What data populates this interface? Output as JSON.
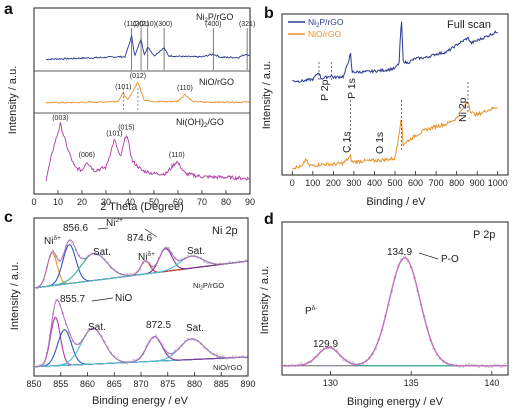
{
  "colors": {
    "navy": "#2a3a8f",
    "orange": "#e8922a",
    "magenta": "#b03aa6",
    "ni_green": "#2eae9a",
    "cyan": "#4bc0d2",
    "red": "#d5342c",
    "purple": "#7c3a9c",
    "gray_dots": "#9a9a9a",
    "axis": "#222222"
  },
  "chart_data": [
    {
      "panel": "a",
      "type": "line",
      "xlabel": "2 Theta (Degree)",
      "ylabel": "Intensity / a.u.",
      "xlim": [
        0,
        90
      ],
      "xticks": [
        0,
        10,
        20,
        30,
        40,
        50,
        60,
        70,
        80,
        90
      ],
      "series": [
        {
          "name": "Ni2P/rGO",
          "color": "navy",
          "x": [
            5,
            10,
            15,
            20,
            25,
            30,
            35,
            38,
            40.7,
            42,
            44.6,
            46,
            47.4,
            50,
            54.2,
            56,
            60,
            65,
            70,
            74.7,
            78,
            82,
            85,
            88.8,
            90
          ],
          "y": [
            0.1,
            0.12,
            0.13,
            0.15,
            0.16,
            0.18,
            0.2,
            0.2,
            1.0,
            0.22,
            0.9,
            0.25,
            0.6,
            0.24,
            0.55,
            0.24,
            0.22,
            0.2,
            0.2,
            0.3,
            0.18,
            0.18,
            0.17,
            0.32,
            0.18
          ],
          "annotations": [
            "(111)",
            "(201)",
            "(210)",
            "(300)",
            "(400)",
            "(321)"
          ],
          "annotation_x": [
            40.7,
            44.6,
            47.4,
            54.2,
            74.7,
            88.8
          ]
        },
        {
          "name": "NiO/rGO",
          "color": "orange",
          "x": [
            5,
            10,
            15,
            20,
            25,
            30,
            35,
            37.2,
            39,
            43.3,
            46,
            50,
            55,
            60,
            62.9,
            66,
            70,
            75,
            80,
            85,
            90
          ],
          "y": [
            0.1,
            0.1,
            0.1,
            0.11,
            0.12,
            0.13,
            0.16,
            0.5,
            0.2,
            0.95,
            0.2,
            0.15,
            0.14,
            0.16,
            0.45,
            0.15,
            0.12,
            0.12,
            0.12,
            0.12,
            0.12
          ],
          "annotations": [
            "(101)",
            "(012)",
            "(110)"
          ],
          "annotation_x": [
            37.2,
            43.3,
            62.9
          ]
        },
        {
          "name": "Ni(OH)2/GO",
          "color": "magenta",
          "x": [
            5,
            8,
            11,
            14,
            17,
            20,
            22,
            25,
            30,
            33.5,
            36,
            38.5,
            41,
            45,
            50,
            55,
            59.5,
            63,
            70,
            80,
            90
          ],
          "y": [
            0.1,
            0.6,
            1.0,
            0.6,
            0.3,
            0.25,
            0.4,
            0.25,
            0.3,
            0.75,
            0.45,
            0.85,
            0.4,
            0.25,
            0.2,
            0.2,
            0.4,
            0.2,
            0.15,
            0.14,
            0.12
          ],
          "annotations": [
            "(003)",
            "(006)",
            "(101)",
            "(015)",
            "(110)"
          ],
          "annotation_x": [
            11,
            22,
            33.5,
            38.5,
            59.5
          ]
        }
      ]
    },
    {
      "panel": "b",
      "type": "line",
      "title": "Full scan",
      "xlabel": "Binding / eV",
      "ylabel": "Intensity / a.u.",
      "xlim": [
        -50,
        1050
      ],
      "xticks": [
        0,
        100,
        200,
        300,
        400,
        500,
        600,
        700,
        800,
        900,
        1000
      ],
      "legend_position": "top-left",
      "series": [
        {
          "name": "Ni2P/rGO",
          "color": "navy",
          "x": [
            0,
            50,
            100,
            130,
            140,
            150,
            190,
            200,
            250,
            284,
            290,
            300,
            350,
            400,
            450,
            500,
            520,
            531,
            540,
            560,
            600,
            650,
            700,
            750,
            800,
            855,
            870,
            900,
            950,
            1000
          ],
          "y": [
            0.3,
            0.3,
            0.32,
            0.4,
            0.33,
            0.33,
            0.36,
            0.34,
            0.35,
            0.6,
            0.4,
            0.4,
            0.4,
            0.41,
            0.42,
            0.44,
            0.5,
            1.0,
            0.52,
            0.5,
            0.55,
            0.56,
            0.6,
            0.62,
            0.7,
            0.78,
            0.72,
            0.75,
            0.8,
            0.85
          ]
        },
        {
          "name": "NiO/rGO",
          "color": "orange",
          "x": [
            0,
            50,
            66,
            80,
            100,
            150,
            200,
            250,
            284,
            290,
            300,
            350,
            400,
            450,
            500,
            531,
            540,
            560,
            600,
            650,
            700,
            750,
            800,
            855,
            870,
            900,
            950,
            1000
          ],
          "y": [
            0.02,
            0.03,
            0.1,
            0.04,
            0.04,
            0.05,
            0.05,
            0.06,
            0.12,
            0.07,
            0.07,
            0.08,
            0.08,
            0.09,
            0.1,
            0.45,
            0.22,
            0.25,
            0.3,
            0.35,
            0.38,
            0.4,
            0.45,
            0.6,
            0.5,
            0.48,
            0.52,
            0.55
          ]
        }
      ],
      "annotations": [
        "P 2p",
        "P 1s",
        "C 1s",
        "O 1s",
        "Ni 2p"
      ],
      "annotation_x": [
        130,
        190,
        284,
        531,
        855
      ]
    },
    {
      "panel": "c",
      "type": "line",
      "title": "Ni 2p",
      "xlabel": "Binding energy / eV",
      "ylabel": "Intensity / a.u.",
      "xlim": [
        850,
        890
      ],
      "xticks": [
        850,
        855,
        860,
        865,
        870,
        875,
        880,
        885,
        890
      ],
      "subplots": [
        {
          "name": "Ni2P/rGO",
          "peaks": [
            853.4,
            856.6,
            861.2,
            870.8,
            874.6,
            879.4
          ],
          "annotations": [
            "Niδ+",
            "856.6",
            "Ni2+",
            "874.6",
            "Niδ+",
            "Sat."
          ]
        },
        {
          "name": "NiO/rGO",
          "peaks": [
            854.0,
            855.7,
            861.0,
            872.5,
            879.5
          ],
          "annotations": [
            "855.7",
            "NiO",
            "Sat.",
            "872.5",
            "Sat."
          ]
        }
      ]
    },
    {
      "panel": "d",
      "type": "line",
      "title": "P 2p",
      "xlabel": "Binging energy / eV",
      "ylabel": "Intensity / a.u.",
      "xlim": [
        127,
        141
      ],
      "xticks": [
        130,
        135,
        140
      ],
      "peaks": [
        129.9,
        134.9
      ],
      "annotations": [
        "Pδ-",
        "129.9",
        "134.9",
        "P-O"
      ]
    }
  ],
  "text": {
    "panel_labels": [
      "a",
      "b",
      "c",
      "d"
    ],
    "a_xlabel": "2 Theta (Degree)",
    "a_ylabel": "Intensity / a.u.",
    "a_legend": [
      "Ni",
      "2",
      "P/rGO",
      "NiO/rGO",
      "Ni(OH)",
      "2",
      "/GO"
    ],
    "a_xticks": [
      "0",
      "10",
      "20",
      "30",
      "40",
      "50",
      "60",
      "70",
      "80",
      "90"
    ],
    "a_peaks_top": [
      "(111)",
      "(201)",
      "(210)",
      "(300)",
      "(400)",
      "(321)"
    ],
    "a_peaks_mid": [
      "(101)",
      "(012)",
      "(110)"
    ],
    "a_peaks_bot": [
      "(003)",
      "(006)",
      "(101)",
      "(015)",
      "(110)"
    ],
    "b_title": "Full scan",
    "b_xlabel": "Binding / eV",
    "b_ylabel": "Intensity / a.u.",
    "b_legend": [
      "Ni",
      "2",
      "P/rGO",
      "NiO/rGO"
    ],
    "b_peaks": [
      "P 2p",
      "P 1s",
      "C 1s",
      "O 1s",
      "Ni 2p"
    ],
    "b_xticks": [
      "0",
      "100",
      "200",
      "300",
      "400",
      "500",
      "600",
      "700",
      "800",
      "900",
      "1000"
    ],
    "c_title": "Ni 2p",
    "c_xlabel": "Binding energy / eV",
    "c_ylabel": "Intensity / a.u.",
    "c_xticks": [
      "850",
      "855",
      "860",
      "865",
      "870",
      "875",
      "880",
      "885",
      "890"
    ],
    "c_top_labels": [
      "Ni",
      "δ+",
      "856.6",
      "Ni",
      "2+",
      "874.6",
      "Sat.",
      "Ni",
      "δ+",
      "Sat."
    ],
    "c_top_sample": [
      "Ni",
      "2",
      "P/rGO"
    ],
    "c_bot_labels": [
      "855.7",
      "NiO",
      "Sat.",
      "872.5",
      "Sat."
    ],
    "c_bot_sample": "NiO/rGO",
    "d_title": "P 2p",
    "d_xlabel": "Binging energy / eV",
    "d_ylabel": "Intensity / a.u.",
    "d_xticks": [
      "130",
      "135",
      "140"
    ],
    "d_labels": [
      "P",
      "δ-",
      "129.9",
      "134.9",
      "P-O"
    ]
  }
}
